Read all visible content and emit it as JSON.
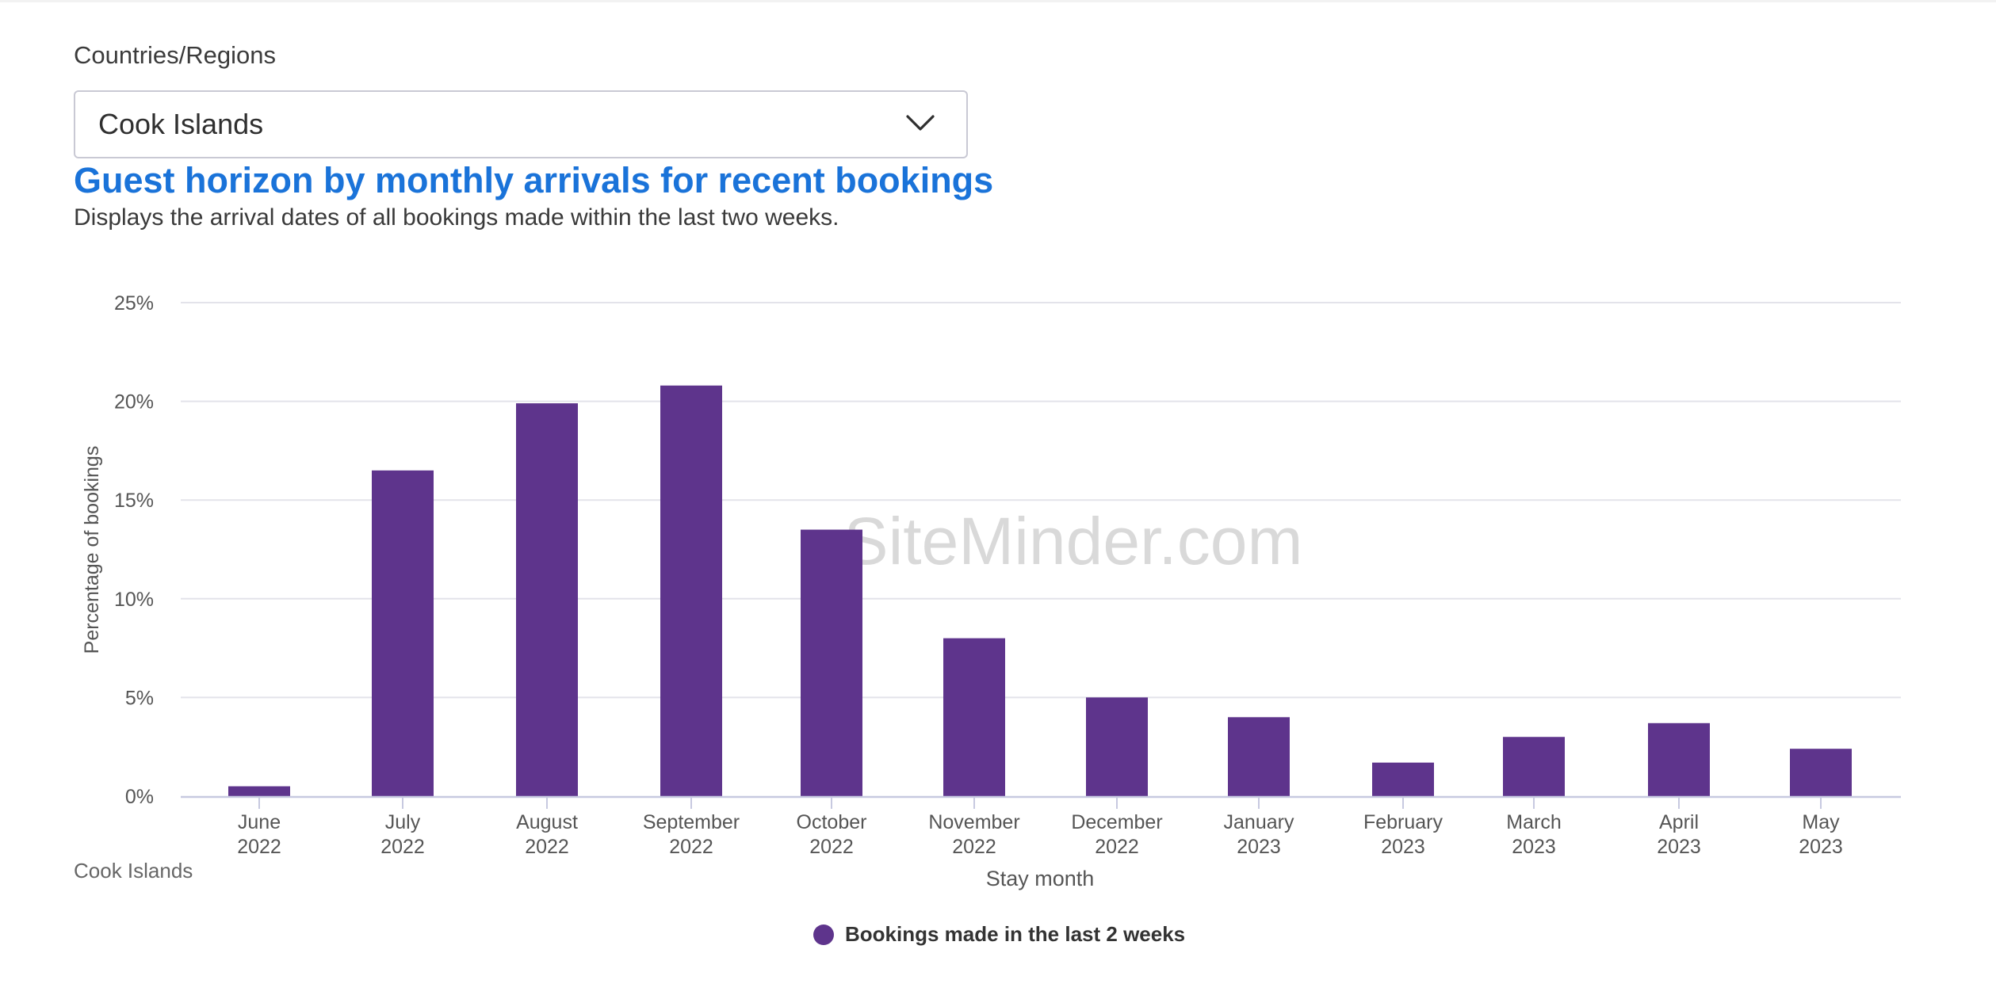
{
  "filter": {
    "label": "Countries/Regions",
    "selected": "Cook Islands"
  },
  "caption": "Cook Islands",
  "watermark": "SiteMinder.com",
  "colors": {
    "bar": "#5e348c",
    "title": "#1a73d9",
    "grid": "#e3e3ea",
    "axis": "#c7c9e0"
  },
  "chart_data": {
    "type": "bar",
    "title": "Guest horizon by monthly arrivals for recent bookings",
    "subtitle": "Displays the arrival dates of all bookings made within the last two weeks.",
    "xlabel": "Stay month",
    "ylabel": "Percentage of bookings",
    "ylim": [
      0,
      25
    ],
    "yticks": [
      "0%",
      "5%",
      "10%",
      "15%",
      "20%",
      "25%"
    ],
    "grid": true,
    "legend_position": "bottom-center",
    "categories": [
      [
        "June",
        "2022"
      ],
      [
        "July",
        "2022"
      ],
      [
        "August",
        "2022"
      ],
      [
        "September",
        "2022"
      ],
      [
        "October",
        "2022"
      ],
      [
        "November",
        "2022"
      ],
      [
        "December",
        "2022"
      ],
      [
        "January",
        "2023"
      ],
      [
        "February",
        "2023"
      ],
      [
        "March",
        "2023"
      ],
      [
        "April",
        "2023"
      ],
      [
        "May",
        "2023"
      ]
    ],
    "series": [
      {
        "name": "Bookings made in the last 2 weeks",
        "values": [
          0.5,
          16.5,
          19.9,
          20.8,
          13.5,
          8.0,
          5.0,
          4.0,
          1.7,
          3.0,
          3.7,
          2.4
        ]
      }
    ]
  }
}
